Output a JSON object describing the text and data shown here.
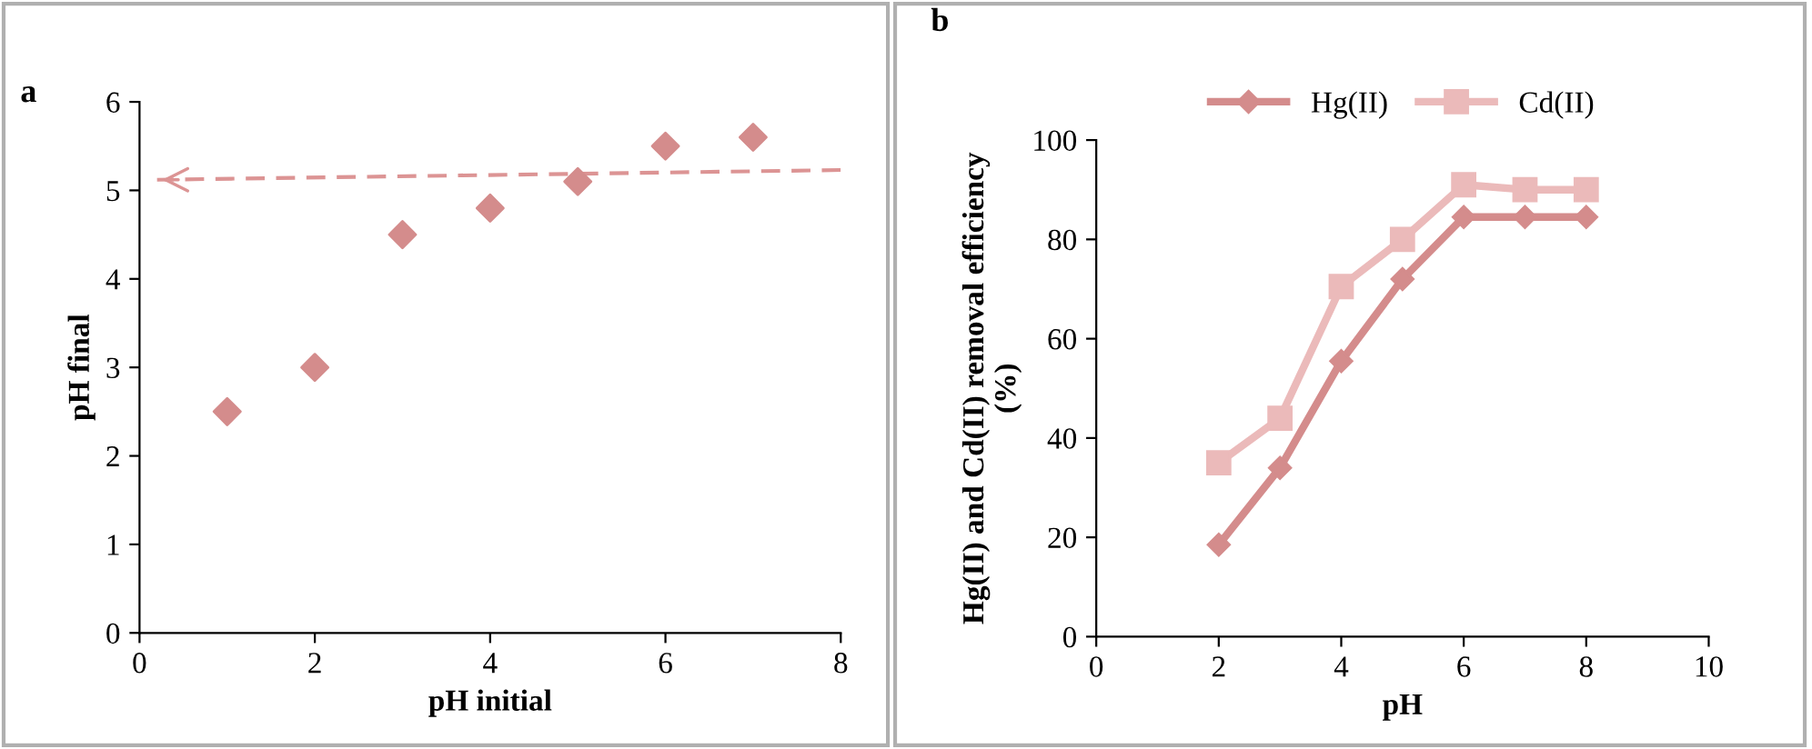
{
  "chart_data": [
    {
      "type": "scatter",
      "xlabel": "pH initial",
      "ylabel": "pH final",
      "annotations": [
        "a"
      ],
      "marker": "diamond",
      "grid": false,
      "legend": false,
      "x": [
        1,
        2,
        3,
        4,
        5,
        6,
        7
      ],
      "xlim": [
        0,
        8
      ],
      "xticks": [
        0,
        2,
        4,
        6,
        8
      ],
      "ylim": [
        0,
        6
      ],
      "yticks": [
        0,
        1,
        2,
        3,
        4,
        5,
        6
      ],
      "series": [
        {
          "color": "#d48c8c",
          "values": [
            2.5,
            3.0,
            4.5,
            4.8,
            5.1,
            5.5,
            5.6
          ]
        },
        {
          "type": "line",
          "line_style": "dashed",
          "marker": "none",
          "color": "#dc9494",
          "x": [
            8,
            0.2
          ],
          "values": [
            5.23,
            5.12
          ]
        }
      ]
    },
    {
      "type": "line",
      "xlabel": "pH",
      "ylabel": "Hg(II) and Cd(II) removal efficiency\n(%)",
      "annotations": [
        "b"
      ],
      "grid": false,
      "legend": "top",
      "x": [
        2,
        3,
        4,
        5,
        6,
        7,
        8
      ],
      "xlim": [
        0,
        10
      ],
      "xticks": [
        0,
        2,
        4,
        6,
        8,
        10
      ],
      "ylim": [
        0,
        100
      ],
      "yticks": [
        0,
        20,
        40,
        60,
        80,
        100
      ],
      "series": [
        {
          "name": "Hg(II)",
          "color": "#d48c8c",
          "marker": "diamond",
          "values": [
            18.5,
            34,
            55.5,
            72,
            84.5,
            84.5,
            84.5
          ]
        },
        {
          "name": "Cd(II)",
          "color": "#ebbaba",
          "marker": "square",
          "values": [
            35,
            44,
            70.5,
            80,
            91,
            90,
            90
          ]
        }
      ]
    }
  ]
}
